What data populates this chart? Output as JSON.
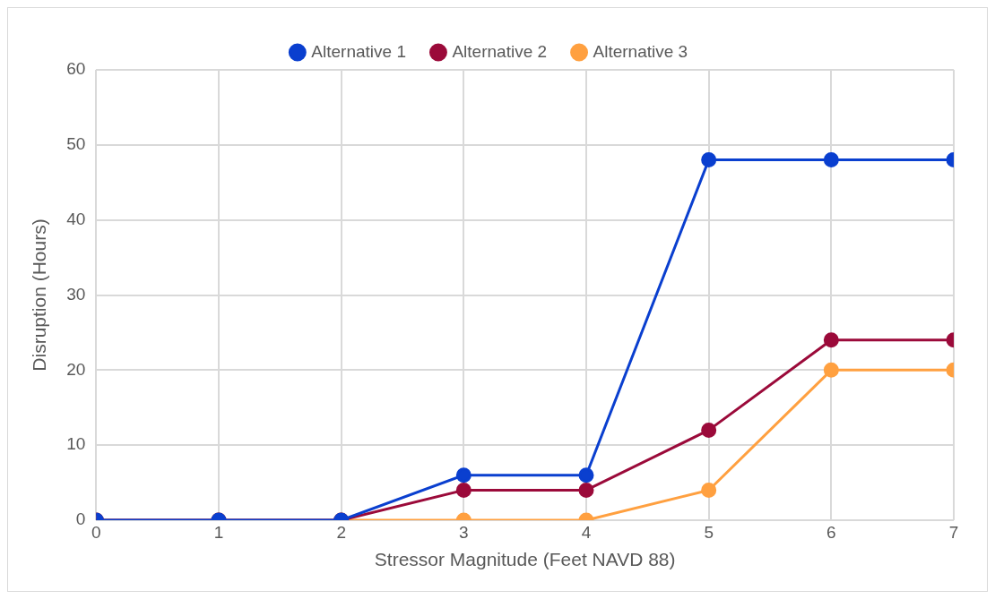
{
  "chart_data": {
    "type": "line",
    "xlabel": "Stressor Magnitude (Feet NAVD 88)",
    "ylabel": "Disruption (Hours)",
    "x": [
      0,
      1,
      2,
      3,
      4,
      5,
      6,
      7
    ],
    "series": [
      {
        "name": "Alternative 1",
        "color": "#0a3fcf",
        "values": [
          0,
          0,
          0,
          6,
          6,
          48,
          48,
          48
        ]
      },
      {
        "name": "Alternative 2",
        "color": "#9b0a3a",
        "values": [
          0,
          0,
          0,
          4,
          4,
          12,
          24,
          24
        ]
      },
      {
        "name": "Alternative 3",
        "color": "#ffa040",
        "values": [
          0,
          0,
          0,
          0,
          0,
          4,
          20,
          20
        ]
      }
    ],
    "xlim": [
      0,
      7
    ],
    "xticks": [
      0,
      1,
      2,
      3,
      4,
      5,
      6,
      7
    ],
    "ylim": [
      0,
      60
    ],
    "yticks": [
      0,
      10,
      20,
      30,
      40,
      50,
      60
    ],
    "grid": true,
    "legend": "top",
    "marker": "circle",
    "line_style": "solid"
  }
}
